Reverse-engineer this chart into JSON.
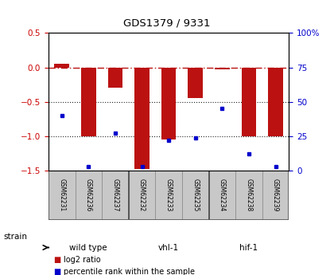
{
  "title": "GDS1379 / 9331",
  "samples": [
    "GSM62231",
    "GSM62236",
    "GSM62237",
    "GSM62232",
    "GSM62233",
    "GSM62235",
    "GSM62234",
    "GSM62238",
    "GSM62239"
  ],
  "log2_ratio": [
    0.05,
    -1.0,
    -0.3,
    -1.48,
    -1.05,
    -0.45,
    -0.03,
    -1.0,
    -1.0
  ],
  "percentile_rank": [
    40,
    3,
    27,
    3,
    22,
    24,
    45,
    12,
    3
  ],
  "groups": [
    {
      "label": "wild type",
      "start": 0,
      "end": 3,
      "color": "#c8f0a0"
    },
    {
      "label": "vhl-1",
      "start": 3,
      "end": 6,
      "color": "#b8e888"
    },
    {
      "label": "hif-1",
      "start": 6,
      "end": 9,
      "color": "#44cc44"
    }
  ],
  "ylim_left": [
    -1.5,
    0.5
  ],
  "ylim_right": [
    0,
    100
  ],
  "yticks_left": [
    -1.5,
    -1.0,
    -0.5,
    0.0,
    0.5
  ],
  "yticks_right": [
    0,
    25,
    50,
    75,
    100
  ],
  "bar_color": "#bb1111",
  "dot_color": "#0000cc",
  "hline0_color": "#bb1111",
  "dotted_line_color": "#222222",
  "background_plot": "#ffffff",
  "background_label": "#c8c8c8",
  "strain_label": "strain"
}
